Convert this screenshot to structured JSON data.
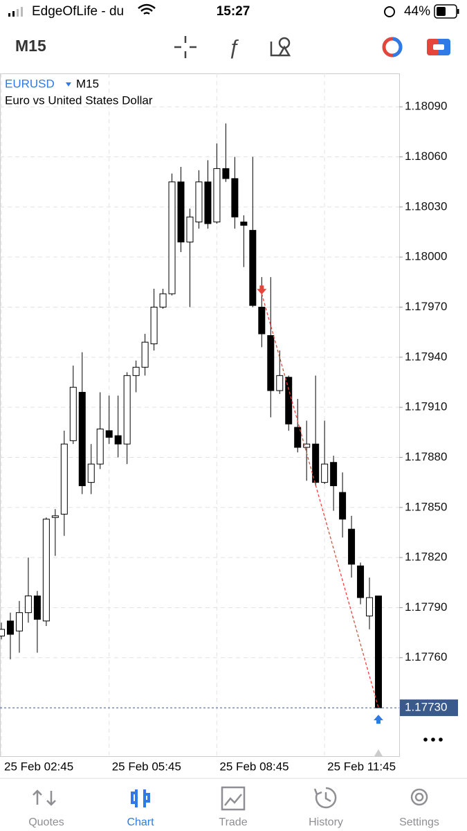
{
  "status_bar": {
    "carrier": "EdgeOfLife - du",
    "time": "15:27",
    "battery": "44%"
  },
  "toolbar": {
    "timeframe": "M15"
  },
  "chart_data": {
    "type": "candlestick",
    "symbol": "EURUSD",
    "timeframe": "M15",
    "description": "Euro vs United States Dollar",
    "categories": [
      "25 Feb 02:45",
      null,
      null,
      null,
      null,
      null,
      null,
      null,
      null,
      null,
      null,
      null,
      "25 Feb 05:45",
      null,
      null,
      null,
      null,
      null,
      null,
      null,
      null,
      null,
      null,
      null,
      "25 Feb 08:45",
      null,
      null,
      null,
      null,
      null,
      null,
      null,
      null,
      null,
      null,
      null,
      "25 Feb 11:45",
      null,
      null,
      null,
      null,
      null,
      null
    ],
    "open": [
      1.17773,
      1.17782,
      1.17776,
      1.17787,
      1.17797,
      1.17782,
      1.17844,
      1.17846,
      1.1789,
      1.17919,
      1.17865,
      1.17876,
      1.17896,
      1.17893,
      1.17888,
      1.17929,
      1.17934,
      1.17948,
      1.1797,
      1.17978,
      1.18045,
      1.18009,
      1.18021,
      1.18045,
      1.18021,
      1.18053,
      1.18047,
      1.18021,
      1.18016,
      1.1797,
      1.17953,
      1.1792,
      1.17928,
      1.17898,
      1.17886,
      1.17888,
      1.17865,
      1.17877,
      1.17859,
      1.17837,
      1.17815,
      1.17785,
      1.17797
    ],
    "high": [
      1.17781,
      1.17787,
      1.17794,
      1.1782,
      1.178,
      1.17844,
      1.17849,
      1.17896,
      1.17935,
      1.17943,
      1.17888,
      1.17919,
      1.17917,
      1.17917,
      1.17931,
      1.17938,
      1.17954,
      1.17981,
      1.17981,
      1.1805,
      1.18054,
      1.18029,
      1.18052,
      1.18058,
      1.18068,
      1.1808,
      1.1806,
      1.18025,
      1.1806,
      1.17988,
      1.17988,
      1.17944,
      1.17929,
      1.17915,
      1.17902,
      1.17929,
      1.17902,
      1.17881,
      1.17871,
      1.17845,
      1.17817,
      1.17808,
      1.17797
    ],
    "low": [
      1.17771,
      1.17759,
      1.17763,
      1.17781,
      1.17763,
      1.17779,
      1.17821,
      1.17833,
      1.17888,
      1.17858,
      1.17858,
      1.17873,
      1.17888,
      1.1788,
      1.17876,
      1.17919,
      1.17929,
      1.17944,
      1.17969,
      1.17977,
      1.18003,
      1.1797,
      1.18017,
      1.18017,
      1.1802,
      1.18045,
      1.18017,
      1.17994,
      1.1797,
      1.17946,
      1.17904,
      1.17918,
      1.17896,
      1.17883,
      1.17866,
      1.17863,
      1.17864,
      1.17848,
      1.17832,
      1.17808,
      1.17792,
      1.17777,
      1.1773
    ],
    "close": [
      1.17777,
      1.17774,
      1.17787,
      1.17797,
      1.17783,
      1.17843,
      1.17845,
      1.17888,
      1.17922,
      1.17863,
      1.17876,
      1.17897,
      1.17892,
      1.17888,
      1.17929,
      1.17934,
      1.17949,
      1.1797,
      1.17978,
      1.18045,
      1.18009,
      1.18024,
      1.18045,
      1.1802,
      1.18053,
      1.18047,
      1.18024,
      1.18019,
      1.17971,
      1.17954,
      1.1792,
      1.17929,
      1.179,
      1.17886,
      1.17888,
      1.17865,
      1.17876,
      1.17863,
      1.17843,
      1.17816,
      1.17796,
      1.17796,
      1.1773
    ],
    "up_color": "#ffffff",
    "down_color": "#000000",
    "ylim": [
      1.17701,
      1.1811
    ],
    "yticks": [
      {
        "value": 1.1809,
        "label": "1.18090"
      },
      {
        "value": 1.1806,
        "label": "1.18060"
      },
      {
        "value": 1.1803,
        "label": "1.18030"
      },
      {
        "value": 1.18,
        "label": "1.18000"
      },
      {
        "value": 1.1797,
        "label": "1.17970"
      },
      {
        "value": 1.1794,
        "label": "1.17940"
      },
      {
        "value": 1.1791,
        "label": "1.17910"
      },
      {
        "value": 1.1788,
        "label": "1.17880"
      },
      {
        "value": 1.1785,
        "label": "1.17850"
      },
      {
        "value": 1.1782,
        "label": "1.17820"
      },
      {
        "value": 1.1779,
        "label": "1.17790"
      },
      {
        "value": 1.1776,
        "label": "1.17760"
      }
    ],
    "grid": true,
    "price_line": {
      "value": 1.1773,
      "label": "1.17730",
      "color": "#3a5a8c"
    },
    "trade": {
      "entry_index": 29,
      "entry_price": 1.17978,
      "exit_index": 42,
      "exit_price": 1.1773,
      "entry_color": "#e5463b",
      "exit_color": "#2f7ae5"
    }
  },
  "tab_bar": {
    "tabs": [
      "Quotes",
      "Chart",
      "Trade",
      "History",
      "Settings"
    ],
    "active": 1
  }
}
